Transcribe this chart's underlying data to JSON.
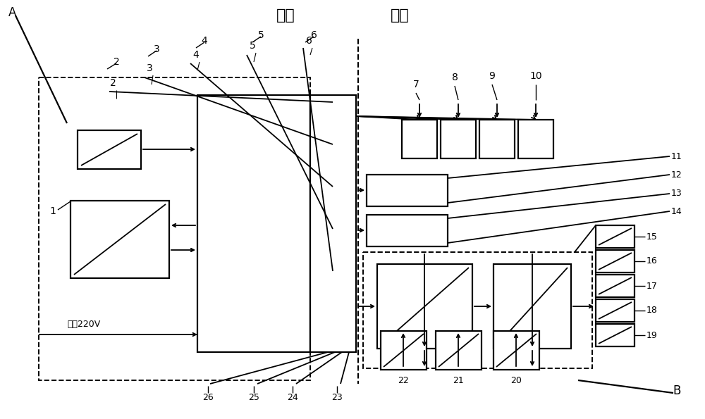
{
  "figsize": [
    10.0,
    5.95
  ],
  "dpi": 100,
  "bg_color": "#ffffff",
  "header_dimian": "地面",
  "header_jianshang": "箭上",
  "label_A": "A",
  "label_B": "B",
  "label_jiaoliu": "交流220V",
  "lw": 1.3,
  "lw_thick": 1.6
}
